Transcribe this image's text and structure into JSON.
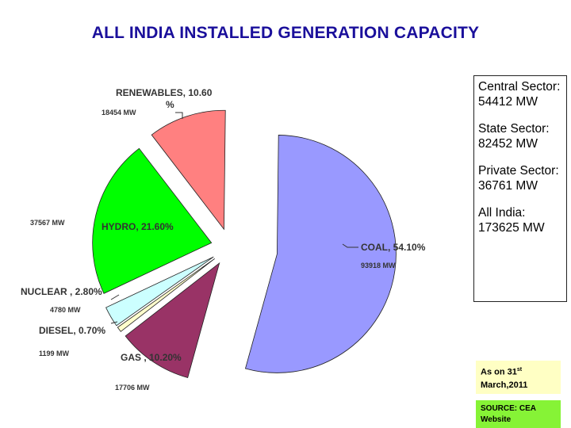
{
  "title": "ALL INDIA INSTALLED GENERATION CAPACITY",
  "chart_data": {
    "type": "pie",
    "exploded": true,
    "slices": [
      {
        "label": "COAL, 54.10%",
        "mw": "93918 MW",
        "value": 54.1,
        "color": "#9999ff"
      },
      {
        "label": "GAS , 10.20%",
        "mw": "17706 MW",
        "value": 10.2,
        "color": "#993366"
      },
      {
        "label": "DIESEL, 0.70%",
        "mw": "1199 MW",
        "value": 0.7,
        "color": "#ffffcc"
      },
      {
        "label": "NUCLEAR , 2.80%",
        "mw": "4780 MW",
        "value": 2.8,
        "color": "#ccffff"
      },
      {
        "label": "HYDRO, 21.60%",
        "mw": "37567 MW",
        "value": 21.6,
        "color": "#00ff00"
      },
      {
        "label": "RENEWABLES, 10.60 %",
        "mw": "18454 MW",
        "value": 10.6,
        "color": "#ff8080"
      }
    ]
  },
  "sectors": [
    "Central Sector: 54412 MW",
    "State Sector: 82452 MW",
    "Private Sector: 36761  MW",
    "All India: 173625 MW"
  ],
  "as_on": {
    "prefix": "As on 31",
    "sup": "st",
    "suffix": " March,2011"
  },
  "source": "SOURCE: CEA Website"
}
